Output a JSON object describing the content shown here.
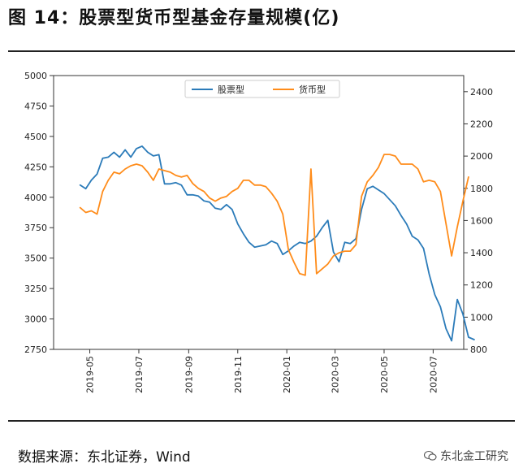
{
  "header": {
    "title": "图 14：股票型货币型基金存量规模(亿)"
  },
  "footer": {
    "source": "数据来源：东北证券，Wind",
    "watermark": "东北金工研究"
  },
  "icons": {
    "watermark_icon": "wechat-icon"
  },
  "chart_data": {
    "type": "line",
    "title": "",
    "xlabel": "",
    "x_ticks": [
      "2019-05",
      "2019-07",
      "2019-09",
      "2019-11",
      "2020-01",
      "2020-03",
      "2020-05",
      "2020-07"
    ],
    "y_left": {
      "label": "",
      "min": 2750,
      "max": 5000,
      "ticks": [
        2750,
        3000,
        3250,
        3500,
        3750,
        4000,
        4250,
        4500,
        4750,
        5000
      ]
    },
    "y_right": {
      "label": "",
      "min": 800,
      "max": 2500,
      "ticks": [
        800,
        1000,
        1200,
        1400,
        1600,
        1800,
        2000,
        2200,
        2400
      ]
    },
    "grid": false,
    "legend_position": "top-center",
    "series": [
      {
        "name": "股票型",
        "axis": "left",
        "color": "#2b7bb9",
        "points": [
          [
            "2019-04-19",
            4100
          ],
          [
            "2019-04-26",
            4070
          ],
          [
            "2019-05-03",
            4140
          ],
          [
            "2019-05-10",
            4190
          ],
          [
            "2019-05-17",
            4320
          ],
          [
            "2019-05-24",
            4330
          ],
          [
            "2019-05-31",
            4370
          ],
          [
            "2019-06-07",
            4330
          ],
          [
            "2019-06-14",
            4390
          ],
          [
            "2019-06-21",
            4330
          ],
          [
            "2019-06-28",
            4400
          ],
          [
            "2019-07-05",
            4420
          ],
          [
            "2019-07-12",
            4370
          ],
          [
            "2019-07-19",
            4340
          ],
          [
            "2019-07-26",
            4350
          ],
          [
            "2019-08-02",
            4110
          ],
          [
            "2019-08-09",
            4110
          ],
          [
            "2019-08-16",
            4120
          ],
          [
            "2019-08-23",
            4100
          ],
          [
            "2019-08-30",
            4020
          ],
          [
            "2019-09-06",
            4020
          ],
          [
            "2019-09-13",
            4010
          ],
          [
            "2019-09-20",
            3970
          ],
          [
            "2019-09-27",
            3960
          ],
          [
            "2019-10-04",
            3910
          ],
          [
            "2019-10-11",
            3900
          ],
          [
            "2019-10-18",
            3940
          ],
          [
            "2019-10-25",
            3900
          ],
          [
            "2019-11-01",
            3780
          ],
          [
            "2019-11-08",
            3700
          ],
          [
            "2019-11-15",
            3630
          ],
          [
            "2019-11-22",
            3590
          ],
          [
            "2019-11-29",
            3600
          ],
          [
            "2019-12-06",
            3610
          ],
          [
            "2019-12-13",
            3640
          ],
          [
            "2019-12-20",
            3620
          ],
          [
            "2019-12-27",
            3530
          ],
          [
            "2020-01-03",
            3560
          ],
          [
            "2020-01-10",
            3600
          ],
          [
            "2020-01-17",
            3630
          ],
          [
            "2020-01-24",
            3620
          ],
          [
            "2020-01-31",
            3640
          ],
          [
            "2020-02-07",
            3680
          ],
          [
            "2020-02-14",
            3750
          ],
          [
            "2020-02-21",
            3810
          ],
          [
            "2020-02-28",
            3550
          ],
          [
            "2020-03-06",
            3470
          ],
          [
            "2020-03-13",
            3630
          ],
          [
            "2020-03-20",
            3620
          ],
          [
            "2020-03-27",
            3660
          ],
          [
            "2020-04-03",
            3900
          ],
          [
            "2020-04-10",
            4070
          ],
          [
            "2020-04-17",
            4090
          ],
          [
            "2020-04-24",
            4060
          ],
          [
            "2020-05-01",
            4030
          ],
          [
            "2020-05-08",
            3980
          ],
          [
            "2020-05-15",
            3930
          ],
          [
            "2020-05-22",
            3850
          ],
          [
            "2020-05-29",
            3780
          ],
          [
            "2020-06-05",
            3680
          ],
          [
            "2020-06-12",
            3650
          ],
          [
            "2020-06-19",
            3580
          ],
          [
            "2020-06-26",
            3370
          ],
          [
            "2020-07-03",
            3200
          ],
          [
            "2020-07-10",
            3100
          ],
          [
            "2020-07-17",
            2920
          ],
          [
            "2020-07-24",
            2820
          ],
          [
            "2020-07-31",
            3160
          ],
          [
            "2020-08-07",
            3040
          ],
          [
            "2020-08-14",
            2850
          ],
          [
            "2020-08-21",
            2830
          ]
        ]
      },
      {
        "name": "货币型",
        "axis": "right",
        "color": "#ff8c1a",
        "points": [
          [
            "2019-04-19",
            1680
          ],
          [
            "2019-04-26",
            1650
          ],
          [
            "2019-05-03",
            1660
          ],
          [
            "2019-05-10",
            1640
          ],
          [
            "2019-05-17",
            1780
          ],
          [
            "2019-05-24",
            1850
          ],
          [
            "2019-05-31",
            1900
          ],
          [
            "2019-06-07",
            1890
          ],
          [
            "2019-06-14",
            1920
          ],
          [
            "2019-06-21",
            1940
          ],
          [
            "2019-06-28",
            1950
          ],
          [
            "2019-07-05",
            1940
          ],
          [
            "2019-07-12",
            1900
          ],
          [
            "2019-07-19",
            1850
          ],
          [
            "2019-07-26",
            1920
          ],
          [
            "2019-08-02",
            1910
          ],
          [
            "2019-08-09",
            1900
          ],
          [
            "2019-08-16",
            1880
          ],
          [
            "2019-08-23",
            1870
          ],
          [
            "2019-08-30",
            1880
          ],
          [
            "2019-09-06",
            1830
          ],
          [
            "2019-09-13",
            1800
          ],
          [
            "2019-09-20",
            1780
          ],
          [
            "2019-09-27",
            1740
          ],
          [
            "2019-10-04",
            1720
          ],
          [
            "2019-10-11",
            1740
          ],
          [
            "2019-10-18",
            1750
          ],
          [
            "2019-10-25",
            1780
          ],
          [
            "2019-11-01",
            1800
          ],
          [
            "2019-11-08",
            1850
          ],
          [
            "2019-11-15",
            1850
          ],
          [
            "2019-11-22",
            1820
          ],
          [
            "2019-11-29",
            1820
          ],
          [
            "2019-12-06",
            1810
          ],
          [
            "2019-12-13",
            1770
          ],
          [
            "2019-12-20",
            1720
          ],
          [
            "2019-12-27",
            1640
          ],
          [
            "2020-01-03",
            1420
          ],
          [
            "2020-01-10",
            1340
          ],
          [
            "2020-01-17",
            1270
          ],
          [
            "2020-01-24",
            1260
          ],
          [
            "2020-01-31",
            1920
          ],
          [
            "2020-02-07",
            1270
          ],
          [
            "2020-02-14",
            1300
          ],
          [
            "2020-02-21",
            1330
          ],
          [
            "2020-02-28",
            1380
          ],
          [
            "2020-03-06",
            1400
          ],
          [
            "2020-03-13",
            1410
          ],
          [
            "2020-03-20",
            1410
          ],
          [
            "2020-03-27",
            1450
          ],
          [
            "2020-04-03",
            1750
          ],
          [
            "2020-04-10",
            1840
          ],
          [
            "2020-04-17",
            1880
          ],
          [
            "2020-04-24",
            1930
          ],
          [
            "2020-05-01",
            2010
          ],
          [
            "2020-05-08",
            2010
          ],
          [
            "2020-05-15",
            2000
          ],
          [
            "2020-05-22",
            1950
          ],
          [
            "2020-05-29",
            1950
          ],
          [
            "2020-06-05",
            1950
          ],
          [
            "2020-06-12",
            1920
          ],
          [
            "2020-06-19",
            1840
          ],
          [
            "2020-06-26",
            1850
          ],
          [
            "2020-07-03",
            1840
          ],
          [
            "2020-07-10",
            1780
          ],
          [
            "2020-07-17",
            1580
          ],
          [
            "2020-07-24",
            1380
          ],
          [
            "2020-07-31",
            1560
          ],
          [
            "2020-08-07",
            1720
          ],
          [
            "2020-08-14",
            1870
          ]
        ]
      }
    ]
  }
}
